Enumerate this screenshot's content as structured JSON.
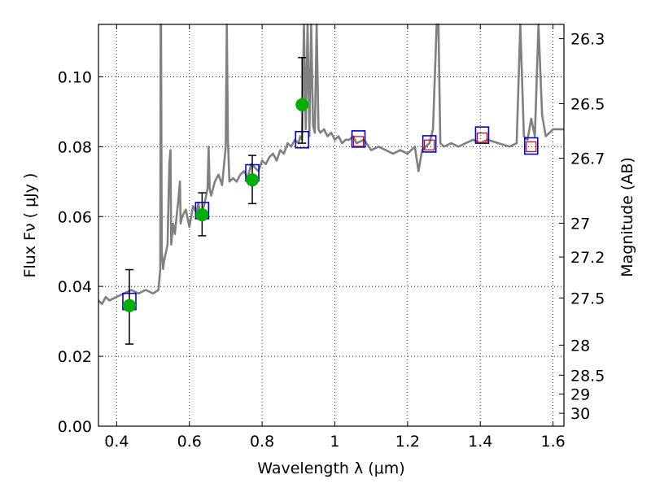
{
  "chart_data": {
    "type": "scatter",
    "xlabel": "Wavelength  λ (μm)",
    "ylabel": "Flux  Fν  ( μJy )",
    "y2label": "Magnitude (AB)",
    "xlim": [
      0.35,
      1.63
    ],
    "ylim": [
      0.0,
      0.115
    ],
    "grid": true,
    "x_ticks": [
      0.4,
      0.6,
      0.8,
      1.0,
      1.2,
      1.4,
      1.6
    ],
    "x_tick_labels": [
      "0.4",
      "0.6",
      "0.8",
      "1",
      "1.2",
      "1.4",
      "1.6"
    ],
    "y_ticks": [
      0.0,
      0.02,
      0.04,
      0.06,
      0.08,
      0.1
    ],
    "y_tick_labels": [
      "0.00",
      "0.02",
      "0.04",
      "0.06",
      "0.08",
      "0.10"
    ],
    "y2_ticks": [
      {
        "label": "26.3",
        "flux": 0.1109
      },
      {
        "label": "26.5",
        "flux": 0.0923
      },
      {
        "label": "26.7",
        "flux": 0.0767
      },
      {
        "label": "27",
        "flux": 0.0581
      },
      {
        "label": "27.2",
        "flux": 0.0484
      },
      {
        "label": "27.5",
        "flux": 0.0367
      },
      {
        "label": "28",
        "flux": 0.0232
      },
      {
        "label": "28.5",
        "flux": 0.0146
      },
      {
        "label": "29",
        "flux": 0.0092
      },
      {
        "label": "30",
        "flux": 0.0037
      }
    ],
    "colors": {
      "template": "#808080",
      "observed": "#00b000",
      "model": "#0000cc",
      "prediction": "#cc0000",
      "error": "#000000"
    },
    "template_spectrum": {
      "name": "",
      "x": [
        0.35,
        0.36,
        0.37,
        0.38,
        0.4,
        0.42,
        0.44,
        0.46,
        0.48,
        0.5,
        0.515,
        0.52,
        0.521,
        0.522,
        0.524,
        0.528,
        0.53,
        0.54,
        0.545,
        0.548,
        0.55,
        0.555,
        0.56,
        0.57,
        0.574,
        0.576,
        0.58,
        0.59,
        0.6,
        0.61,
        0.62,
        0.625,
        0.63,
        0.64,
        0.65,
        0.653,
        0.656,
        0.66,
        0.67,
        0.68,
        0.69,
        0.7,
        0.703,
        0.706,
        0.71,
        0.72,
        0.73,
        0.74,
        0.75,
        0.76,
        0.77,
        0.78,
        0.79,
        0.8,
        0.81,
        0.82,
        0.83,
        0.84,
        0.85,
        0.86,
        0.87,
        0.88,
        0.89,
        0.9,
        0.905,
        0.91,
        0.915,
        0.92,
        0.925,
        0.93,
        0.935,
        0.94,
        0.945,
        0.95,
        0.955,
        0.96,
        0.97,
        0.98,
        0.99,
        1.0,
        1.01,
        1.02,
        1.03,
        1.04,
        1.05,
        1.06,
        1.08,
        1.1,
        1.12,
        1.14,
        1.16,
        1.18,
        1.2,
        1.22,
        1.23,
        1.24,
        1.25,
        1.26,
        1.27,
        1.28,
        1.285,
        1.29,
        1.3,
        1.32,
        1.34,
        1.36,
        1.38,
        1.4,
        1.42,
        1.45,
        1.48,
        1.5,
        1.51,
        1.52,
        1.53,
        1.54,
        1.55,
        1.56,
        1.57,
        1.58,
        1.6,
        1.63
      ],
      "y": [
        0.036,
        0.035,
        0.037,
        0.036,
        0.037,
        0.038,
        0.039,
        0.038,
        0.039,
        0.038,
        0.039,
        0.045,
        0.115,
        0.115,
        0.05,
        0.045,
        0.047,
        0.052,
        0.075,
        0.079,
        0.052,
        0.058,
        0.055,
        0.065,
        0.07,
        0.058,
        0.06,
        0.062,
        0.057,
        0.063,
        0.061,
        0.064,
        0.06,
        0.063,
        0.068,
        0.08,
        0.068,
        0.066,
        0.07,
        0.072,
        0.069,
        0.08,
        0.115,
        0.082,
        0.07,
        0.071,
        0.07,
        0.072,
        0.073,
        0.071,
        0.075,
        0.074,
        0.073,
        0.076,
        0.075,
        0.077,
        0.078,
        0.076,
        0.079,
        0.078,
        0.081,
        0.08,
        0.082,
        0.081,
        0.083,
        0.082,
        0.115,
        0.085,
        0.115,
        0.083,
        0.115,
        0.086,
        0.084,
        0.115,
        0.085,
        0.084,
        0.085,
        0.083,
        0.084,
        0.082,
        0.083,
        0.081,
        0.082,
        0.082,
        0.083,
        0.081,
        0.082,
        0.079,
        0.08,
        0.079,
        0.078,
        0.079,
        0.078,
        0.08,
        0.073,
        0.079,
        0.08,
        0.081,
        0.085,
        0.115,
        0.115,
        0.081,
        0.08,
        0.081,
        0.08,
        0.081,
        0.082,
        0.081,
        0.082,
        0.081,
        0.08,
        0.081,
        0.115,
        0.083,
        0.082,
        0.088,
        0.083,
        0.115,
        0.089,
        0.083,
        0.085,
        0.085
      ]
    },
    "observed_points": {
      "name": "",
      "x": [
        0.435,
        0.635,
        0.773,
        0.91
      ],
      "y": [
        0.0345,
        0.0605,
        0.0705,
        0.092
      ],
      "yerr_low": [
        0.0235,
        0.0545,
        0.0637,
        0.081
      ],
      "yerr_high": [
        0.0448,
        0.0668,
        0.0775,
        0.1055
      ]
    },
    "model_points": {
      "name": "",
      "x": [
        0.435,
        0.635,
        0.773,
        0.91,
        1.065,
        1.26,
        1.405,
        1.54
      ],
      "y": [
        0.0357,
        0.0617,
        0.0725,
        0.082,
        0.0822,
        0.0808,
        0.0833,
        0.0802
      ]
    },
    "predicted_points": {
      "name": "",
      "x": [
        1.065,
        1.26,
        1.405,
        1.54
      ],
      "y": [
        0.0815,
        0.0805,
        0.0825,
        0.08
      ]
    }
  }
}
